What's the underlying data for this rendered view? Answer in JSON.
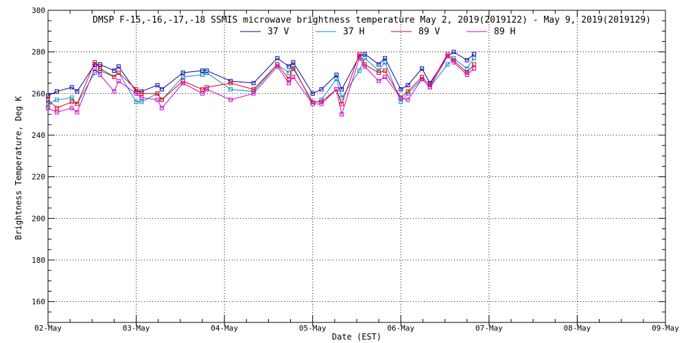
{
  "chart_data": {
    "type": "line",
    "title": "DMSP F-15,-16,-17,-18 SSMIS microwave brightness temperature May  2, 2019(2019122) - May  9, 2019(2019129)",
    "xlabel": "Date (EST)",
    "ylabel": "Brightness Temperature, Deg K",
    "ylim": [
      150,
      300
    ],
    "xlim": [
      0,
      7
    ],
    "grid": true,
    "legend_placement": "top-center",
    "x_tick_labels": [
      "02-May",
      "03-May",
      "04-May",
      "05-May",
      "06-May",
      "07-May",
      "08-May",
      "09-May"
    ],
    "y_tick_labels": [
      "160",
      "180",
      "200",
      "220",
      "240",
      "260",
      "280",
      "300"
    ],
    "x": [
      0.0,
      0.1,
      0.27,
      0.33,
      0.53,
      0.59,
      0.75,
      0.8,
      1.0,
      1.06,
      1.24,
      1.29,
      1.53,
      1.75,
      1.8,
      2.07,
      2.33,
      2.6,
      2.73,
      2.78,
      3.0,
      3.1,
      3.27,
      3.33,
      3.53,
      3.59,
      3.75,
      3.82,
      4.0,
      4.08,
      4.24,
      4.33,
      4.53,
      4.6,
      4.75,
      4.83
    ],
    "series": [
      {
        "name": "37 V",
        "color": "#0000aa",
        "values": [
          259,
          261,
          263,
          261,
          274,
          274,
          271,
          273,
          261,
          261,
          264,
          262,
          270,
          271,
          271,
          266,
          265,
          277,
          273,
          275,
          260,
          262,
          269,
          262,
          278,
          279,
          274,
          277,
          262,
          264,
          272,
          265,
          278,
          280,
          276,
          279
        ]
      },
      {
        "name": "37 H",
        "color": "#0088cc",
        "values": [
          255,
          257,
          258,
          255,
          270,
          271,
          268,
          270,
          256,
          256,
          260,
          257,
          268,
          269,
          270,
          262,
          261,
          274,
          270,
          273,
          255,
          257,
          267,
          258,
          271,
          277,
          271,
          275,
          256,
          260,
          267,
          263,
          274,
          277,
          272,
          277
        ]
      },
      {
        "name": "89 V",
        "color": "#dd0000",
        "values": [
          257,
          253,
          256,
          255,
          275,
          272,
          268,
          270,
          262,
          260,
          260,
          257,
          266,
          262,
          263,
          265,
          262,
          274,
          267,
          272,
          256,
          256,
          262,
          255,
          279,
          274,
          270,
          271,
          258,
          261,
          268,
          264,
          279,
          276,
          270,
          274
        ]
      },
      {
        "name": "89 H",
        "color": "#cc00cc",
        "values": [
          253,
          251,
          253,
          251,
          272,
          269,
          261,
          266,
          260,
          258,
          257,
          253,
          265,
          260,
          262,
          257,
          260,
          273,
          265,
          268,
          255,
          255,
          262,
          250,
          277,
          273,
          266,
          268,
          258,
          257,
          267,
          263,
          278,
          275,
          269,
          272
        ]
      }
    ]
  }
}
